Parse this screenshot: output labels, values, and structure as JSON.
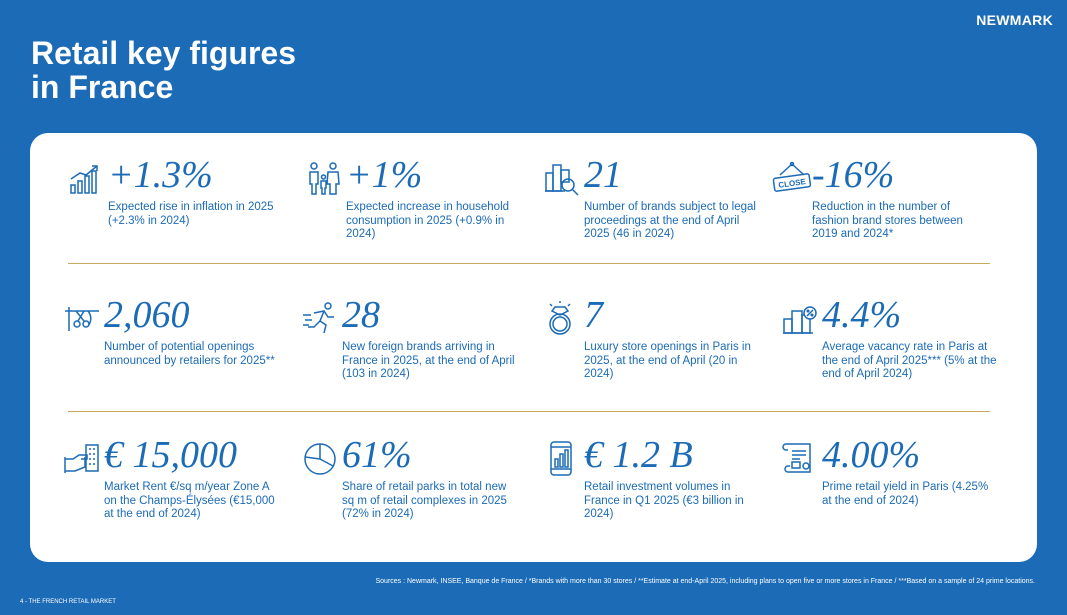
{
  "brand": "NEWMARK",
  "title": {
    "line1": "Retail key figures",
    "line2": "in France"
  },
  "rows": [
    [
      {
        "icon": "growth-chart-icon",
        "value": "+1.3%",
        "desc": "Expected rise in inflation in 2025 (+2.3% in 2024)"
      },
      {
        "icon": "family-icon",
        "value": "+1%",
        "desc": "Expected increase in household consumption in 2025 (+0.9% in 2024)"
      },
      {
        "icon": "magnifier-buildings-icon",
        "value": "21",
        "desc": "Number of brands subject to legal proceedings at the end of April 2025 (46 in 2024)"
      },
      {
        "icon": "close-sign-icon",
        "value": "-16%",
        "desc": "Reduction in the number of fashion brand stores between 2019 and 2024*",
        "sign_text": "CLOSE"
      }
    ],
    [
      {
        "icon": "ribbon-scissors-icon",
        "value": "2,060",
        "desc": "Number of potential openings announced by retailers for 2025**"
      },
      {
        "icon": "runner-icon",
        "value": "28",
        "desc": "New foreign brands arriving in France in 2025, at the end of April (103 in 2024)"
      },
      {
        "icon": "diamond-ring-icon",
        "value": "7",
        "desc": "Luxury store openings in Paris in 2025, at the end of April (20 in 2024)"
      },
      {
        "icon": "vacancy-building-icon",
        "value": "4.4%",
        "desc": "Average vacancy rate in Paris at the end of April 2025*** (5% at the end of April 2024)"
      }
    ],
    [
      {
        "icon": "hand-building-icon",
        "value": "€ 15,000",
        "desc": "Market Rent €/sq m/year Zone A on the Champs-Élysées (€15,000 at the end of 2024)"
      },
      {
        "icon": "pie-chart-icon",
        "value": "61%",
        "desc": "Share of retail parks in total new sq m of retail complexes in 2025 (72% in 2024)"
      },
      {
        "icon": "phone-chart-icon",
        "value": "€ 1.2 B",
        "desc": "Retail investment volumes in France in Q1 2025 (€3 billion in 2024)"
      },
      {
        "icon": "document-icon",
        "value": "4.00%",
        "desc": "Prime retail yield in Paris (4.25% at the end of 2024)"
      }
    ]
  ],
  "sources": "Sources : Newmark, INSEE, Banque de France / *Brands with more than 30 stores / **Estimate at end-April 2025, including plans to open five or more stores in France / ***Based on a sample of 24 prime locations.",
  "footer": "4 - THE FRENCH RETAIL MARKET",
  "colors": {
    "background": "#1b6bb6",
    "card": "#ffffff",
    "accent": "#1b6bb6",
    "divider": "#c7a960"
  }
}
